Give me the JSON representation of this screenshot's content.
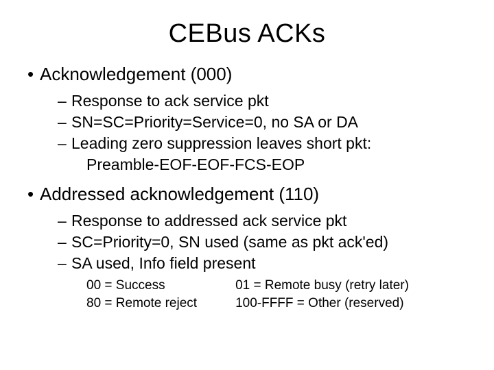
{
  "title": "CEBus ACKs",
  "section1": {
    "heading": "Acknowledgement (000)",
    "items": [
      "Response to ack service pkt",
      "SN=SC=Priority=Service=0, no SA or DA",
      "Leading zero suppression leaves short pkt:"
    ],
    "sub": "Preamble-EOF-EOF-FCS-EOP"
  },
  "section2": {
    "heading": "Addressed acknowledgement (110)",
    "items": [
      "Response to addressed ack service pkt",
      "SC=Priority=0, SN used (same as pkt ack'ed)",
      "SA used, Info field present"
    ],
    "codes": {
      "col1": [
        "00 = Success",
        "80 = Remote reject"
      ],
      "col2": [
        "01 = Remote busy (retry later)",
        "100-FFFF = Other (reserved)"
      ]
    }
  }
}
